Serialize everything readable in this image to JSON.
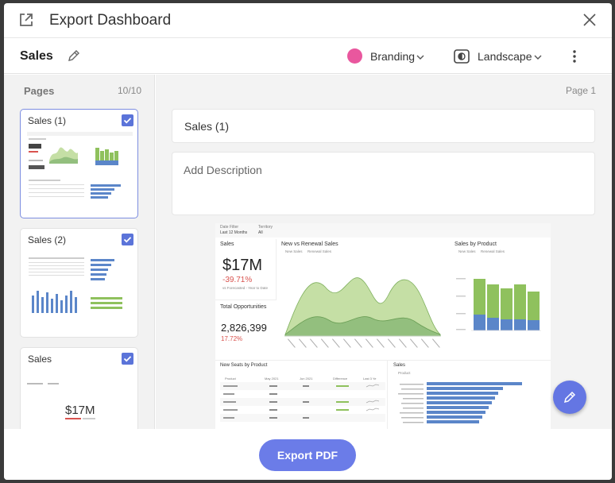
{
  "dialog": {
    "title": "Export Dashboard"
  },
  "toolbar": {
    "dashboard_name": "Sales",
    "branding_label": "Branding",
    "branding_color": "#e9579e",
    "orientation_label": "Landscape"
  },
  "sidebar": {
    "title": "Pages",
    "count": "10/10",
    "pages": [
      {
        "label": "Sales (1)",
        "checked": true
      },
      {
        "label": "Sales (2)",
        "checked": true
      },
      {
        "label": "Sales",
        "checked": true
      }
    ],
    "thumb3_value": "$17M"
  },
  "main": {
    "page_label": "Page 1",
    "title_value": "Sales (1)",
    "description_placeholder": "Add Description"
  },
  "preview": {
    "filter1_label": "Date Filter",
    "filter1_value": "Last 12 Months",
    "filter2_label": "Territory",
    "filter2_value": "All",
    "kpi1": {
      "title": "Sales",
      "value": "$17M",
      "change": "-39.71%",
      "note": "vs Forecasted - Year to Date"
    },
    "kpi2": {
      "title": "Total Opportunities",
      "value": "2,826,399",
      "change": "17.72%"
    },
    "chart1": {
      "title": "New vs Renewal Sales",
      "legend": [
        "New Sales",
        "Renewal Sales"
      ]
    },
    "chart2": {
      "title": "Sales by Product",
      "legend": [
        "New Sales",
        "Renewal Sales"
      ]
    },
    "table": {
      "title": "New Seats by Product",
      "headers": [
        "Product",
        "May 2021",
        "Jun 2021",
        "Difference",
        "Last 3 Ye"
      ]
    },
    "chart3": {
      "title": "Sales",
      "legend": [
        "Product"
      ]
    }
  },
  "footer": {
    "export_label": "Export PDF"
  },
  "colors": {
    "accent": "#6b7ce8",
    "checkbox": "#5b74d9",
    "area_green": "#a6cd7e",
    "bar_blue": "#5b86c9",
    "negative": "#d9534f"
  }
}
